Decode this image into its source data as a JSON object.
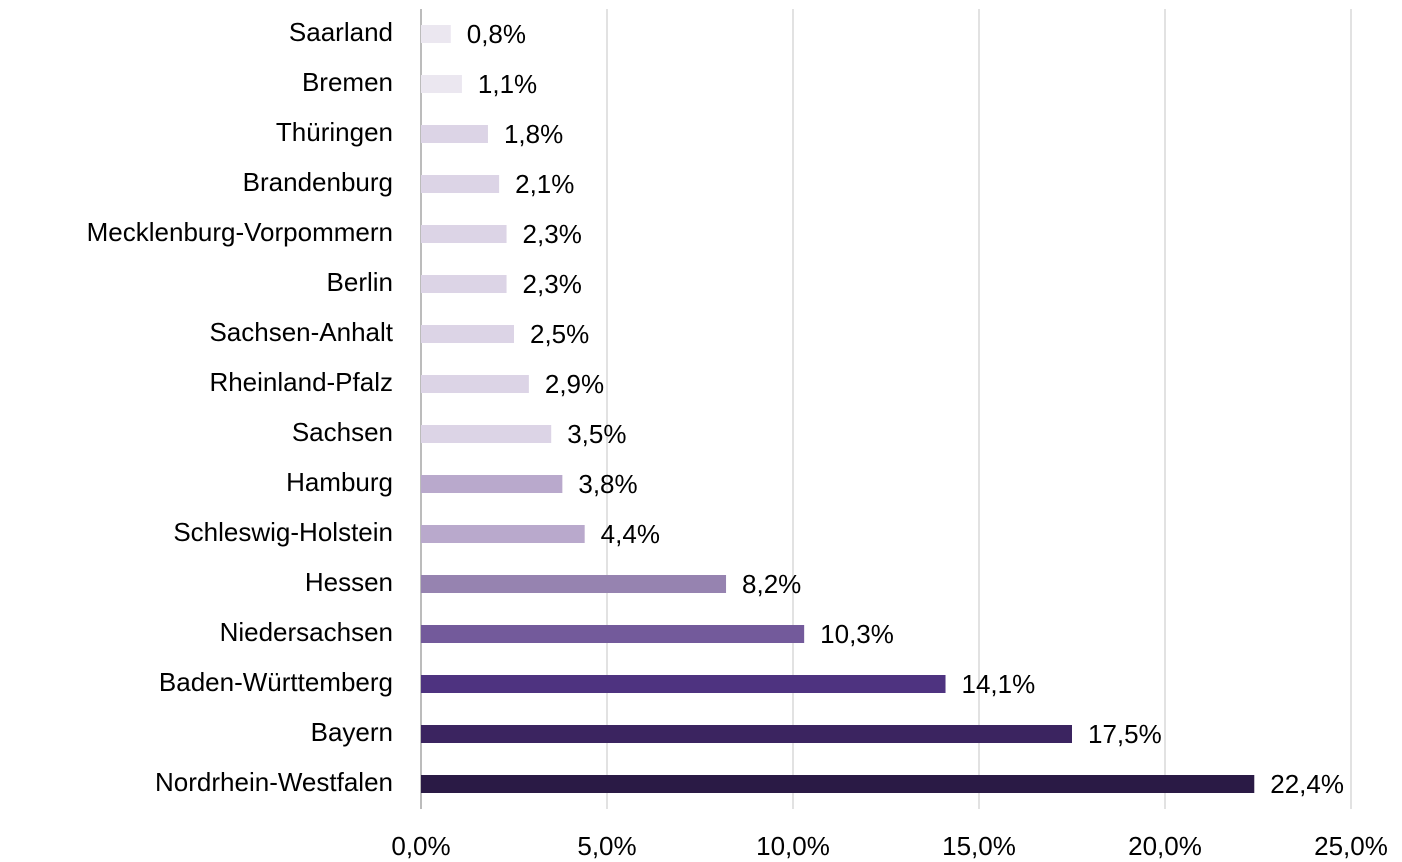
{
  "chart_data": {
    "type": "barh",
    "categories": [
      "Saarland",
      "Bremen",
      "Thüringen",
      "Brandenburg",
      "Mecklenburg-Vorpommern",
      "Berlin",
      "Sachsen-Anhalt",
      "Rheinland-Pfalz",
      "Sachsen",
      "Hamburg",
      "Schleswig-Holstein",
      "Hessen",
      "Niedersachsen",
      "Baden-Württemberg",
      "Bayern",
      "Nordrhein-Westfalen"
    ],
    "values": [
      0.8,
      1.1,
      1.8,
      2.1,
      2.3,
      2.3,
      2.5,
      2.9,
      3.5,
      3.8,
      4.4,
      8.2,
      10.3,
      14.1,
      17.5,
      22.4
    ],
    "value_labels": [
      "0,8%",
      "1,1%",
      "1,8%",
      "2,1%",
      "2,3%",
      "2,3%",
      "2,5%",
      "2,9%",
      "3,5%",
      "3,8%",
      "4,4%",
      "8,2%",
      "10,3%",
      "14,1%",
      "17,5%",
      "22,4%"
    ],
    "colors": [
      "#ebe7f0",
      "#ebe7f0",
      "#dcd4e6",
      "#dcd4e6",
      "#dcd4e6",
      "#dcd4e6",
      "#dcd4e6",
      "#dcd4e6",
      "#dcd4e6",
      "#b9a9cc",
      "#b9a9cc",
      "#9683b0",
      "#735a9b",
      "#4e3380",
      "#3b2460",
      "#2a1a45"
    ],
    "xlim": [
      0,
      25
    ],
    "xticks": [
      {
        "value": 0,
        "label": "0,0%"
      },
      {
        "value": 5,
        "label": "5,0%"
      },
      {
        "value": 10,
        "label": "10,0%"
      },
      {
        "value": 15,
        "label": "15,0%"
      },
      {
        "value": 20,
        "label": "20,0%"
      },
      {
        "value": 25,
        "label": "25,0%"
      }
    ],
    "grid": true
  }
}
